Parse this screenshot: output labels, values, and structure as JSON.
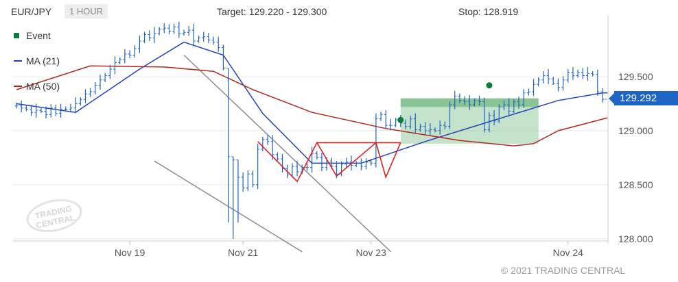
{
  "header": {
    "pair": "EUR/JPY",
    "interval": "1 HOUR",
    "target": "Target: 129.220 - 129.300",
    "stop": "Stop: 128.919"
  },
  "legend": {
    "event": "Event",
    "ma21": "MA (21)",
    "ma50": "MA (50)"
  },
  "current_price_label": "129.292",
  "watermark": "TRADING CENTRAL",
  "copyright": "© 2021 TRADING CENTRAL",
  "colors": {
    "candle": "#1e63c6",
    "ma21": "#1f3fbf",
    "ma50": "#b3261e",
    "pattern": "#e02020",
    "channel": "#8c8c8c",
    "target_box": "#5aab67",
    "event": "#0a7d3e",
    "grid": "#e6e6e6"
  },
  "chart_data": {
    "type": "line",
    "instrument": "EUR/JPY",
    "timeframe": "1 HOUR",
    "x_labels": [
      "Nov 19",
      "Nov 21",
      "Nov 23",
      "Nov 24"
    ],
    "y_ticks": [
      128.0,
      128.5,
      129.0,
      129.5
    ],
    "ylim": [
      127.98,
      130.02
    ],
    "grid": true,
    "legend_position": "top-left",
    "current_price": 129.292,
    "target_range": [
      129.22,
      129.3
    ],
    "stop": 128.919,
    "bars": [
      129.23,
      129.21,
      129.2,
      129.17,
      129.19,
      129.18,
      129.15,
      129.21,
      129.16,
      129.2,
      129.2,
      129.21,
      129.25,
      129.29,
      129.34,
      129.36,
      129.42,
      129.47,
      129.51,
      129.57,
      129.63,
      129.66,
      129.71,
      129.7,
      129.76,
      129.83,
      129.89,
      129.86,
      129.9,
      129.94,
      129.95,
      129.92,
      129.96,
      129.9,
      129.91,
      129.93,
      129.83,
      129.86,
      129.87,
      129.84,
      129.82,
      129.77,
      129.58,
      128.76,
      128.73,
      128.57,
      128.47,
      128.6,
      128.5,
      128.83,
      128.92,
      128.9,
      128.78,
      128.74,
      128.65,
      128.59,
      128.67,
      128.62,
      128.66,
      128.66,
      128.79,
      128.75,
      128.66,
      128.72,
      128.67,
      128.6,
      128.69,
      128.71,
      128.68,
      128.7,
      128.67,
      128.71,
      128.7,
      129.11,
      129.15,
      129.05,
      129.05,
      129.1,
      129.07,
      129.04,
      129.11,
      129.01,
      129.04,
      129.0,
      129.01,
      129.0,
      129.05,
      129.04,
      129.24,
      129.32,
      129.28,
      129.27,
      129.24,
      129.28,
      129.27,
      129.01,
      129.14,
      129.09,
      129.22,
      129.24,
      129.18,
      129.27,
      129.24,
      129.35,
      129.36,
      129.43,
      129.47,
      129.51,
      129.48,
      129.44,
      129.4,
      129.47,
      129.54,
      129.51,
      129.54,
      129.51,
      129.53,
      129.52,
      129.36,
      129.29
    ],
    "series": [
      {
        "name": "MA (21)",
        "points": [
          [
            0,
            129.25
          ],
          [
            12,
            129.17
          ],
          [
            25,
            129.57
          ],
          [
            34,
            129.82
          ],
          [
            42,
            129.7
          ],
          [
            50,
            129.16
          ],
          [
            60,
            128.7
          ],
          [
            70,
            128.7
          ],
          [
            83,
            128.9
          ],
          [
            95,
            129.07
          ],
          [
            110,
            129.28
          ],
          [
            119,
            129.35
          ],
          [
            120,
            129.35
          ]
        ]
      },
      {
        "name": "MA (50)",
        "points": [
          [
            0,
            129.38
          ],
          [
            15,
            129.6
          ],
          [
            30,
            129.59
          ],
          [
            40,
            129.55
          ],
          [
            48,
            129.38
          ],
          [
            60,
            129.17
          ],
          [
            75,
            129.02
          ],
          [
            90,
            128.91
          ],
          [
            101,
            128.86
          ],
          [
            105,
            128.88
          ],
          [
            110,
            129.0
          ],
          [
            120,
            129.12
          ]
        ]
      }
    ],
    "annotations": {
      "pattern_zigzag": [
        [
          49,
          128.9
        ],
        [
          57,
          128.53
        ],
        [
          61,
          128.89
        ],
        [
          65,
          128.58
        ],
        [
          73,
          128.89
        ],
        [
          75,
          128.57
        ],
        [
          78,
          128.89
        ]
      ],
      "resistance_line": {
        "x": [
          61,
          78
        ],
        "y": 128.89
      },
      "target_box": {
        "x": [
          78,
          106
        ],
        "y_high": 129.3,
        "y_low": 128.88
      },
      "event_markers": [
        [
          78,
          129.1
        ],
        [
          96,
          129.42
        ]
      ],
      "channel_lines": [
        [
          [
            34,
            129.7
          ],
          [
            76,
            127.88
          ]
        ],
        [
          [
            28,
            128.72
          ],
          [
            58,
            127.88
          ]
        ]
      ]
    }
  }
}
